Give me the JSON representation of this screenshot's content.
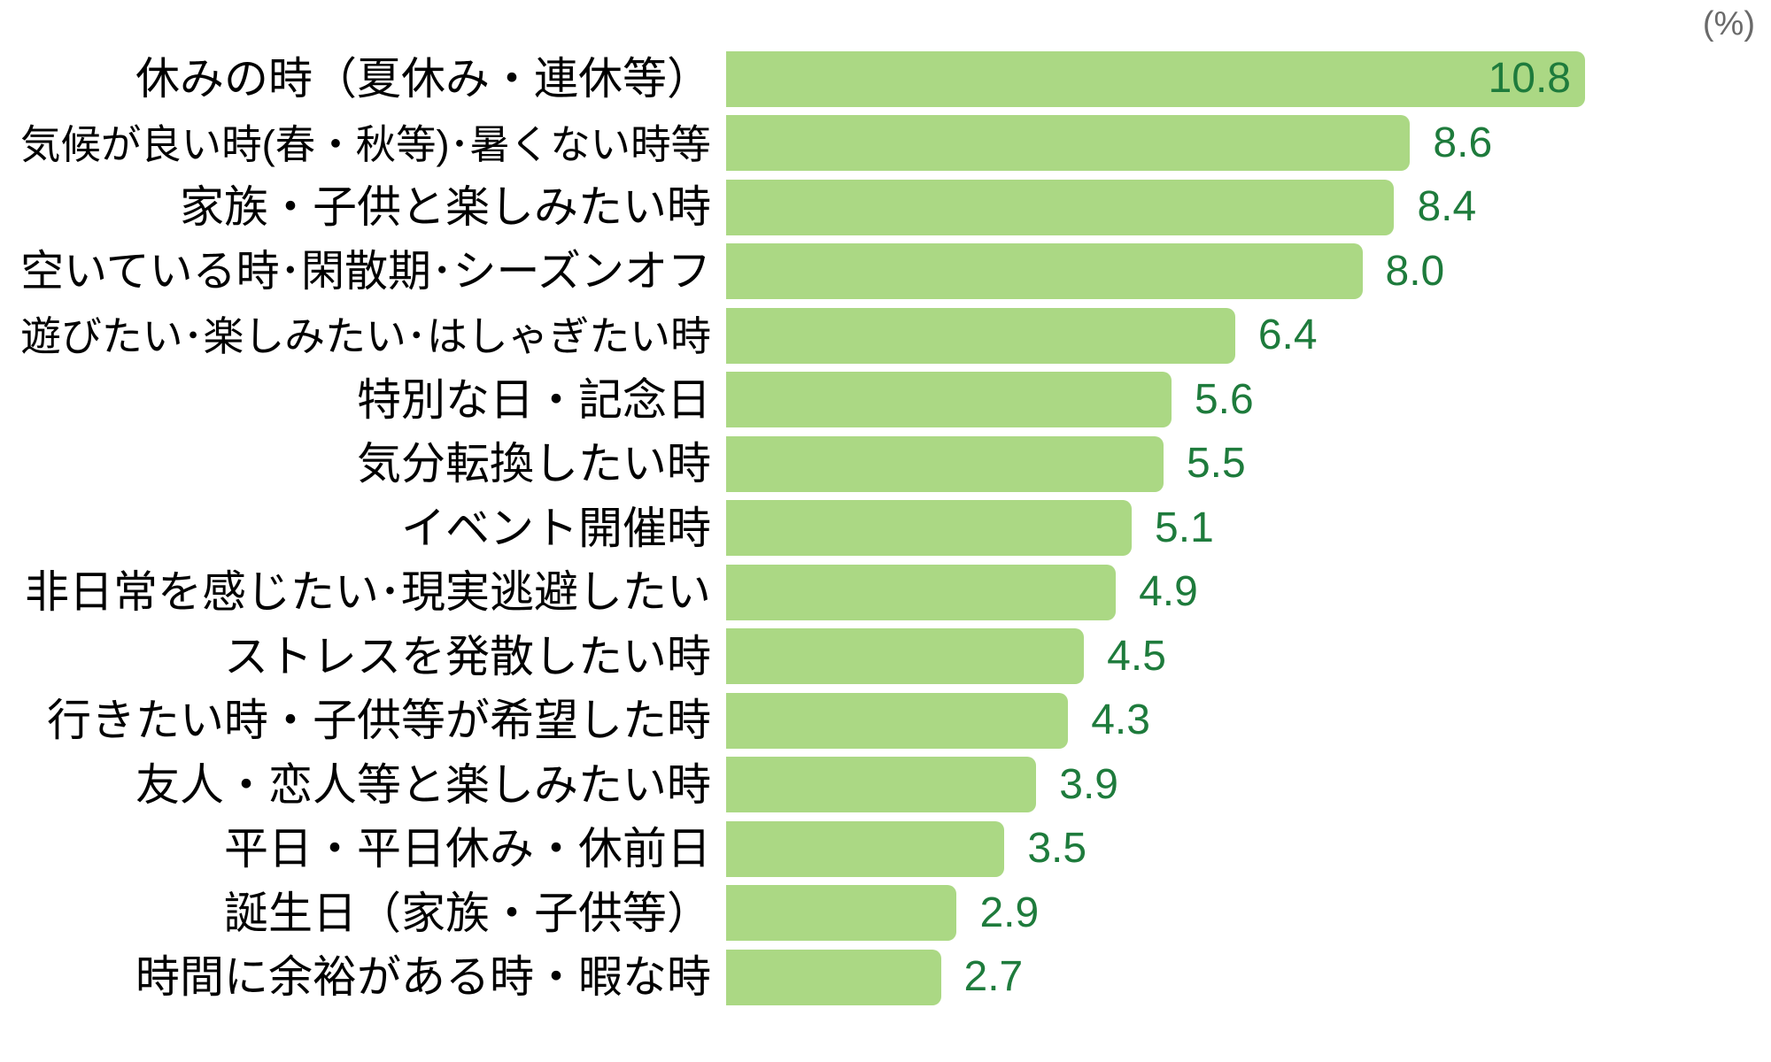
{
  "unit_label": "(%)",
  "colors": {
    "bar": "#abd884",
    "value_text": "#1e7b3c",
    "label_text": "#000000",
    "unit_text": "#6a6a6a"
  },
  "chart_data": {
    "type": "bar",
    "orientation": "horizontal",
    "title": "",
    "xlabel": "",
    "ylabel": "",
    "unit": "%",
    "legend": false,
    "grid": false,
    "value_labels": "outside-end (inside-end for max bar)",
    "xlim": [
      0,
      12.9
    ],
    "categories": [
      "休みの時（夏休み・連休等）",
      "気候が良い時(春・秋等)･暑くない時等",
      "家族・子供と楽しみたい時",
      "空いている時･閑散期･シーズンオフ",
      "遊びたい･楽しみたい･はしゃぎたい時",
      "特別な日・記念日",
      "気分転換したい時",
      "イベント開催時",
      "非日常を感じたい･現実逃避したい",
      "ストレスを発散したい時",
      "行きたい時・子供等が希望した時",
      "友人・恋人等と楽しみたい時",
      "平日・平日休み・休前日",
      "誕生日（家族・子供等）",
      "時間に余裕がある時・暇な時"
    ],
    "values": [
      10.8,
      8.6,
      8.4,
      8.0,
      6.4,
      5.6,
      5.5,
      5.1,
      4.9,
      4.5,
      4.3,
      3.9,
      3.5,
      2.9,
      2.7
    ]
  }
}
